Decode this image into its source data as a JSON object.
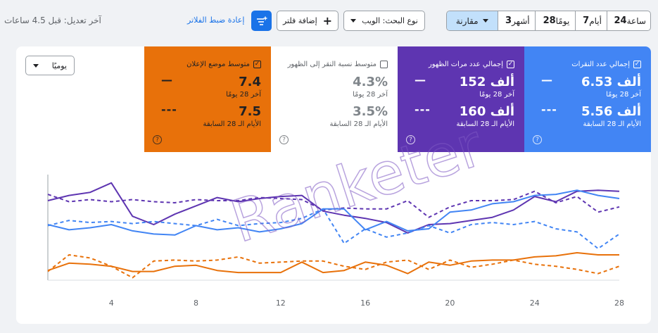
{
  "toolbar": {
    "timerange": [
      {
        "num": "24",
        "unit": "ساعة"
      },
      {
        "num": "7",
        "unit": "أيام"
      },
      {
        "num": "28",
        "unit": "يومًا"
      },
      {
        "num": "3",
        "unit": "أشهر"
      }
    ],
    "compare_label": "مقارنة",
    "search_type_label": "نوع البحث: الويب",
    "add_filter_label": "إضافة فلتر",
    "reset_filters_label": "إعادة ضبط الفلاتر",
    "last_updated": "آخر تعديل: قبل 4.5 ساعات"
  },
  "metrics": {
    "clicks": {
      "label": "إجمالي عدد النقرات",
      "current": "6.53 ألف",
      "current_period": "آخر 28 يومًا",
      "previous": "5.56 ألف",
      "previous_period": "الأيام الـ 28 السابقة",
      "checked": true,
      "dash_current": "—",
      "dash_previous": "---"
    },
    "impressions": {
      "label": "إجمالي عدد مرات الظهور",
      "current": "152 ألف",
      "current_period": "آخر 28 يومًا",
      "previous": "160 ألف",
      "previous_period": "الأيام الـ 28 السابقة",
      "checked": true,
      "dash_current": "—",
      "dash_previous": "---"
    },
    "ctr": {
      "label": "متوسط نسبة النقر إلى الظهور",
      "current": "4.3%",
      "current_period": "آخر 28 يومًا",
      "previous": "3.5%",
      "previous_period": "الأيام الـ 28 السابقة",
      "checked": false
    },
    "position": {
      "label": "متوسط موضع الإعلان",
      "current": "7.4",
      "current_period": "آخر 28 يومًا",
      "previous": "7.5",
      "previous_period": "الأيام الـ 28 السابقة",
      "checked": true,
      "dash_current": "—",
      "dash_previous": "---"
    }
  },
  "granularity_label": "يوميًا",
  "help_glyph": "?",
  "check_glyph": "✓",
  "watermark": "Ranketer",
  "colors": {
    "clicks": "#4285f4",
    "impressions": "#5e35b1",
    "position": "#e8710a",
    "accent": "#1a73e8",
    "compare_bg": "#c2e0fb"
  },
  "chart_data": {
    "type": "line",
    "x_ticks": [
      "4",
      "8",
      "12",
      "16",
      "20",
      "24",
      "28"
    ],
    "x": [
      1,
      2,
      3,
      4,
      5,
      6,
      7,
      8,
      9,
      10,
      11,
      12,
      13,
      14,
      15,
      16,
      17,
      18,
      19,
      20,
      21,
      22,
      23,
      24,
      25,
      26,
      27,
      28
    ],
    "series": [
      {
        "metric": "impressions",
        "period": "current",
        "values": [
          0.75,
          0.8,
          0.83,
          0.92,
          0.6,
          0.52,
          0.62,
          0.7,
          0.78,
          0.74,
          0.77,
          0.79,
          0.8,
          0.65,
          0.61,
          0.58,
          0.54,
          0.44,
          0.52,
          0.53,
          0.56,
          0.59,
          0.66,
          0.79,
          0.74,
          0.84,
          0.85,
          0.84
        ]
      },
      {
        "metric": "impressions",
        "period": "previous",
        "values": [
          0.81,
          0.74,
          0.76,
          0.74,
          0.76,
          0.74,
          0.73,
          0.76,
          0.75,
          0.75,
          0.78,
          0.77,
          0.76,
          0.66,
          0.68,
          0.67,
          0.67,
          0.75,
          0.59,
          0.69,
          0.75,
          0.75,
          0.76,
          0.84,
          0.73,
          0.79,
          0.64,
          0.69
        ]
      },
      {
        "metric": "clicks",
        "period": "current",
        "values": [
          0.52,
          0.47,
          0.49,
          0.52,
          0.46,
          0.43,
          0.42,
          0.51,
          0.47,
          0.49,
          0.45,
          0.48,
          0.53,
          0.67,
          0.67,
          0.47,
          0.55,
          0.46,
          0.48,
          0.64,
          0.66,
          0.72,
          0.74,
          0.8,
          0.81,
          0.85,
          0.8,
          0.77
        ]
      },
      {
        "metric": "clicks",
        "period": "previous",
        "values": [
          0.51,
          0.56,
          0.54,
          0.55,
          0.53,
          0.55,
          0.53,
          0.51,
          0.57,
          0.51,
          0.53,
          0.54,
          0.58,
          0.67,
          0.34,
          0.48,
          0.4,
          0.44,
          0.51,
          0.44,
          0.52,
          0.54,
          0.52,
          0.55,
          0.48,
          0.45,
          0.29,
          0.43
        ]
      },
      {
        "metric": "position",
        "period": "current",
        "values": [
          0.08,
          0.15,
          0.14,
          0.12,
          0.07,
          0.07,
          0.12,
          0.13,
          0.08,
          0.06,
          0.06,
          0.06,
          0.16,
          0.06,
          0.08,
          0.16,
          0.13,
          0.05,
          0.16,
          0.13,
          0.17,
          0.18,
          0.18,
          0.21,
          0.22,
          0.25,
          0.23,
          0.23
        ]
      },
      {
        "metric": "position",
        "period": "previous",
        "values": [
          0.07,
          0.23,
          0.2,
          0.12,
          0.01,
          0.17,
          0.18,
          0.17,
          0.18,
          0.21,
          0.15,
          0.16,
          0.17,
          0.17,
          0.12,
          0.09,
          0.16,
          0.18,
          0.09,
          0.18,
          0.11,
          0.14,
          0.18,
          0.14,
          0.12,
          0.09,
          0.05,
          0.12
        ]
      }
    ]
  }
}
